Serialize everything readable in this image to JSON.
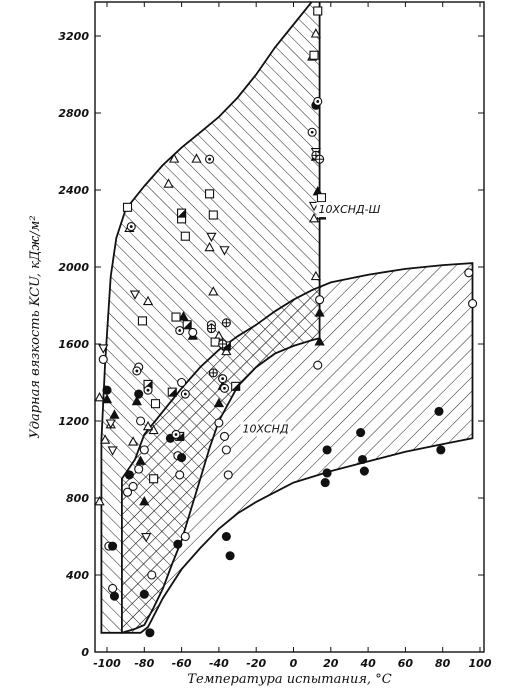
{
  "chart_data": {
    "type": "scatter",
    "xlabel": "Температура испытания, °С",
    "ylabel": "Ударная вязкость KCU, кДж/м²",
    "xlim": [
      -108,
      100
    ],
    "ylim": [
      0,
      3400
    ],
    "x_ticks": [
      "-100",
      "-80",
      "-60",
      "-40",
      "-20",
      "0",
      "20",
      "40",
      "60",
      "80",
      "100"
    ],
    "y_ticks": [
      "0",
      "400",
      "800",
      "1200",
      "1600",
      "2000",
      "2400",
      "2800",
      "3200"
    ],
    "x_tick_values": [
      -100,
      -80,
      -60,
      -40,
      -20,
      0,
      20,
      40,
      60,
      80,
      100
    ],
    "y_tick_values": [
      0,
      400,
      800,
      1200,
      1600,
      2000,
      2400,
      2800,
      3200
    ],
    "grid": false,
    "regions": [
      {
        "label": "10ХСНД-Ш",
        "pattern": "dense-diagonal-hatch",
        "upper": [
          [
            -103,
            1100
          ],
          [
            -101,
            1500
          ],
          [
            -98,
            1950
          ],
          [
            -95,
            2150
          ],
          [
            -90,
            2300
          ],
          [
            -80,
            2420
          ],
          [
            -70,
            2530
          ],
          [
            -60,
            2620
          ],
          [
            -50,
            2700
          ],
          [
            -40,
            2780
          ],
          [
            -30,
            2880
          ],
          [
            -20,
            3000
          ],
          [
            -10,
            3140
          ],
          [
            0,
            3260
          ],
          [
            10,
            3380
          ],
          [
            14,
            3400
          ]
        ],
        "lower": [
          [
            -103,
            100
          ],
          [
            -98,
            100
          ],
          [
            -92,
            100
          ],
          [
            -85,
            120
          ],
          [
            -80,
            140
          ],
          [
            -75,
            230
          ],
          [
            -70,
            330
          ],
          [
            -65,
            460
          ],
          [
            -60,
            580
          ],
          [
            -55,
            740
          ],
          [
            -50,
            900
          ],
          [
            -45,
            1060
          ],
          [
            -40,
            1200
          ],
          [
            -30,
            1380
          ],
          [
            -20,
            1480
          ],
          [
            -10,
            1550
          ],
          [
            0,
            1590
          ],
          [
            10,
            1620
          ],
          [
            14,
            1630
          ]
        ]
      },
      {
        "label": "10ХСНД",
        "pattern": "sparse-diagonal-hatch",
        "upper": [
          [
            -92,
            900
          ],
          [
            -85,
            1000
          ],
          [
            -80,
            1130
          ],
          [
            -70,
            1250
          ],
          [
            -60,
            1370
          ],
          [
            -50,
            1480
          ],
          [
            -40,
            1570
          ],
          [
            -30,
            1640
          ],
          [
            -20,
            1700
          ],
          [
            -10,
            1770
          ],
          [
            0,
            1830
          ],
          [
            10,
            1880
          ],
          [
            20,
            1920
          ],
          [
            40,
            1960
          ],
          [
            60,
            1990
          ],
          [
            80,
            2010
          ],
          [
            96,
            2020
          ]
        ],
        "lower": [
          [
            -92,
            100
          ],
          [
            -82,
            100
          ],
          [
            -78,
            130
          ],
          [
            -70,
            280
          ],
          [
            -60,
            430
          ],
          [
            -50,
            540
          ],
          [
            -40,
            640
          ],
          [
            -30,
            720
          ],
          [
            -20,
            780
          ],
          [
            -10,
            830
          ],
          [
            0,
            880
          ],
          [
            20,
            940
          ],
          [
            40,
            990
          ],
          [
            60,
            1040
          ],
          [
            80,
            1080
          ],
          [
            96,
            1110
          ]
        ]
      }
    ],
    "series": [
      {
        "marker": "triangle-open",
        "points": [
          [
            -104,
            780
          ],
          [
            -101,
            1100
          ],
          [
            -98,
            1180
          ],
          [
            -88,
            2200
          ],
          [
            -78,
            1820
          ],
          [
            -75,
            1150
          ],
          [
            -67,
            2430
          ],
          [
            -64,
            2560
          ],
          [
            -52,
            2560
          ],
          [
            -45,
            2100
          ],
          [
            -43,
            1870
          ],
          [
            -40,
            1640
          ],
          [
            -36,
            1560
          ],
          [
            12,
            3210
          ],
          [
            10,
            3090
          ],
          [
            11,
            2250
          ],
          [
            12,
            1950
          ],
          [
            -104,
            1320
          ],
          [
            -86,
            1090
          ],
          [
            -78,
            1170
          ]
        ]
      },
      {
        "marker": "triangle-filled",
        "points": [
          [
            -100,
            1310
          ],
          [
            -96,
            1230
          ],
          [
            -84,
            1300
          ],
          [
            -82,
            990
          ],
          [
            -80,
            780
          ],
          [
            -59,
            1740
          ],
          [
            -54,
            1640
          ],
          [
            -40,
            1290
          ],
          [
            -38,
            1380
          ],
          [
            12,
            2570
          ],
          [
            13,
            2390
          ],
          [
            14,
            1760
          ],
          [
            14,
            1610
          ]
        ]
      },
      {
        "marker": "triangle-down-open",
        "points": [
          [
            -102,
            1580
          ],
          [
            -98,
            1190
          ],
          [
            -97,
            1050
          ],
          [
            -85,
            1860
          ],
          [
            -79,
            600
          ],
          [
            -44,
            2160
          ],
          [
            -37,
            2090
          ],
          [
            11,
            2320
          ],
          [
            12,
            2600
          ]
        ]
      },
      {
        "marker": "square-open",
        "points": [
          [
            -89,
            2310
          ],
          [
            -81,
            1720
          ],
          [
            -74,
            1290
          ],
          [
            -60,
            2250
          ],
          [
            -58,
            2160
          ],
          [
            -45,
            2380
          ],
          [
            -43,
            2270
          ],
          [
            -42,
            1610
          ],
          [
            11,
            3100
          ],
          [
            13,
            3330
          ],
          [
            15,
            2360
          ],
          [
            -75,
            900
          ],
          [
            -63,
            1740
          ]
        ]
      },
      {
        "marker": "square-half",
        "points": [
          [
            -60,
            2280
          ],
          [
            -57,
            1700
          ],
          [
            -36,
            1590
          ],
          [
            -31,
            1380
          ],
          [
            15,
            2270
          ],
          [
            -78,
            1390
          ],
          [
            -65,
            1350
          ],
          [
            -61,
            1120
          ]
        ]
      },
      {
        "marker": "circle-open",
        "points": [
          [
            -102,
            1520
          ],
          [
            -99,
            550
          ],
          [
            -97,
            330
          ],
          [
            -89,
            830
          ],
          [
            -86,
            860
          ],
          [
            -83,
            1480
          ],
          [
            -82,
            1200
          ],
          [
            -80,
            1050
          ],
          [
            -76,
            400
          ],
          [
            -62,
            1020
          ],
          [
            -61,
            920
          ],
          [
            -58,
            600
          ],
          [
            -54,
            1660
          ],
          [
            -40,
            1190
          ],
          [
            -37,
            1120
          ],
          [
            -36,
            1050
          ],
          [
            -35,
            920
          ],
          [
            13,
            1490
          ],
          [
            14,
            1830
          ],
          [
            94,
            1970
          ],
          [
            96,
            1810
          ],
          [
            -83,
            950
          ],
          [
            -60,
            1400
          ]
        ]
      },
      {
        "marker": "circle-filled",
        "points": [
          [
            -100,
            1360
          ],
          [
            -97,
            550
          ],
          [
            -96,
            290
          ],
          [
            -88,
            920
          ],
          [
            -83,
            1340
          ],
          [
            -80,
            300
          ],
          [
            -77,
            100
          ],
          [
            -62,
            560
          ],
          [
            -36,
            600
          ],
          [
            -34,
            500
          ],
          [
            12,
            2840
          ],
          [
            18,
            1050
          ],
          [
            18,
            930
          ],
          [
            17,
            880
          ],
          [
            36,
            1140
          ],
          [
            37,
            1000
          ],
          [
            38,
            940
          ],
          [
            78,
            1250
          ],
          [
            79,
            1050
          ],
          [
            -60,
            1010
          ],
          [
            -66,
            1110
          ]
        ]
      },
      {
        "marker": "circle-dot",
        "points": [
          [
            -87,
            2210
          ],
          [
            -78,
            1360
          ],
          [
            -61,
            1670
          ],
          [
            -45,
            2560
          ],
          [
            -44,
            1700
          ],
          [
            -38,
            1420
          ],
          [
            -37,
            1370
          ],
          [
            10,
            2700
          ],
          [
            13,
            2860
          ],
          [
            -63,
            1130
          ],
          [
            -58,
            1340
          ],
          [
            -84,
            1460
          ]
        ]
      },
      {
        "marker": "circle-cross",
        "points": [
          [
            -44,
            1680
          ],
          [
            -38,
            1600
          ],
          [
            -36,
            1710
          ],
          [
            12,
            2580
          ],
          [
            14,
            2560
          ],
          [
            -43,
            1450
          ]
        ]
      }
    ],
    "annotations": [
      "10ХСНД-Ш",
      "10ХСНД"
    ],
    "annotation_positions": [
      [
        30,
        2280
      ],
      [
        -15,
        1140
      ]
    ]
  }
}
